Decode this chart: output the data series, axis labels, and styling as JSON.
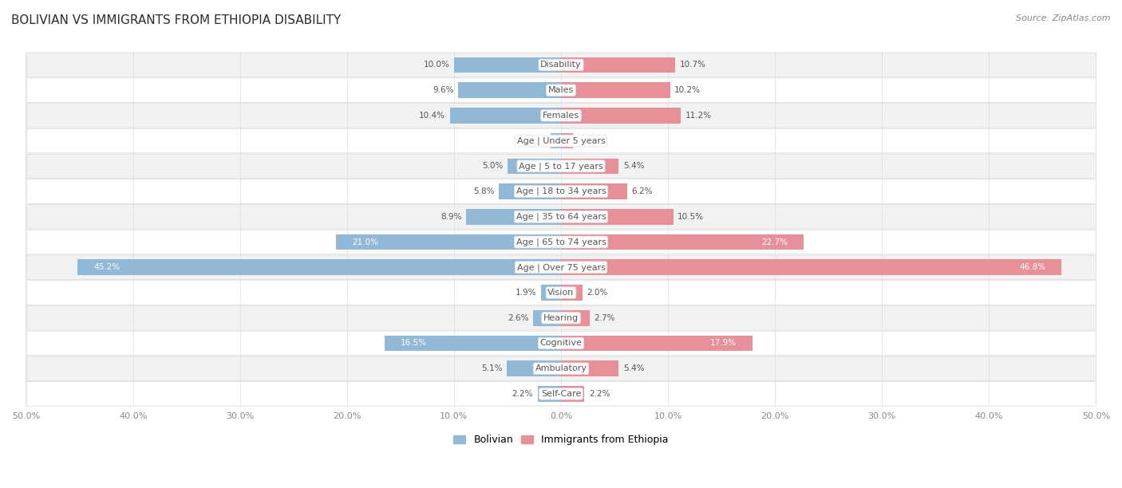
{
  "title": "BOLIVIAN VS IMMIGRANTS FROM ETHIOPIA DISABILITY",
  "source": "Source: ZipAtlas.com",
  "categories": [
    "Disability",
    "Males",
    "Females",
    "Age | Under 5 years",
    "Age | 5 to 17 years",
    "Age | 18 to 34 years",
    "Age | 35 to 64 years",
    "Age | 65 to 74 years",
    "Age | Over 75 years",
    "Vision",
    "Hearing",
    "Cognitive",
    "Ambulatory",
    "Self-Care"
  ],
  "bolivian": [
    10.0,
    9.6,
    10.4,
    1.0,
    5.0,
    5.8,
    8.9,
    21.0,
    45.2,
    1.9,
    2.6,
    16.5,
    5.1,
    2.2
  ],
  "ethiopia": [
    10.7,
    10.2,
    11.2,
    1.1,
    5.4,
    6.2,
    10.5,
    22.7,
    46.8,
    2.0,
    2.7,
    17.9,
    5.4,
    2.2
  ],
  "bolivian_color": "#92b8d8",
  "ethiopia_color": "#e8909a",
  "axis_max": 50.0,
  "axis_min": -50.0,
  "background_color": "#ffffff",
  "row_bg_light": "#f2f2f2",
  "row_bg_white": "#ffffff",
  "row_border": "#d8d8d8",
  "legend_bolivian": "Bolivian",
  "legend_ethiopia": "Immigrants from Ethiopia",
  "label_color": "#555555",
  "title_color": "#2c2c2c",
  "value_label_color": "#555555",
  "value_label_inside_color": "#ffffff",
  "tick_label_color": "#888888"
}
